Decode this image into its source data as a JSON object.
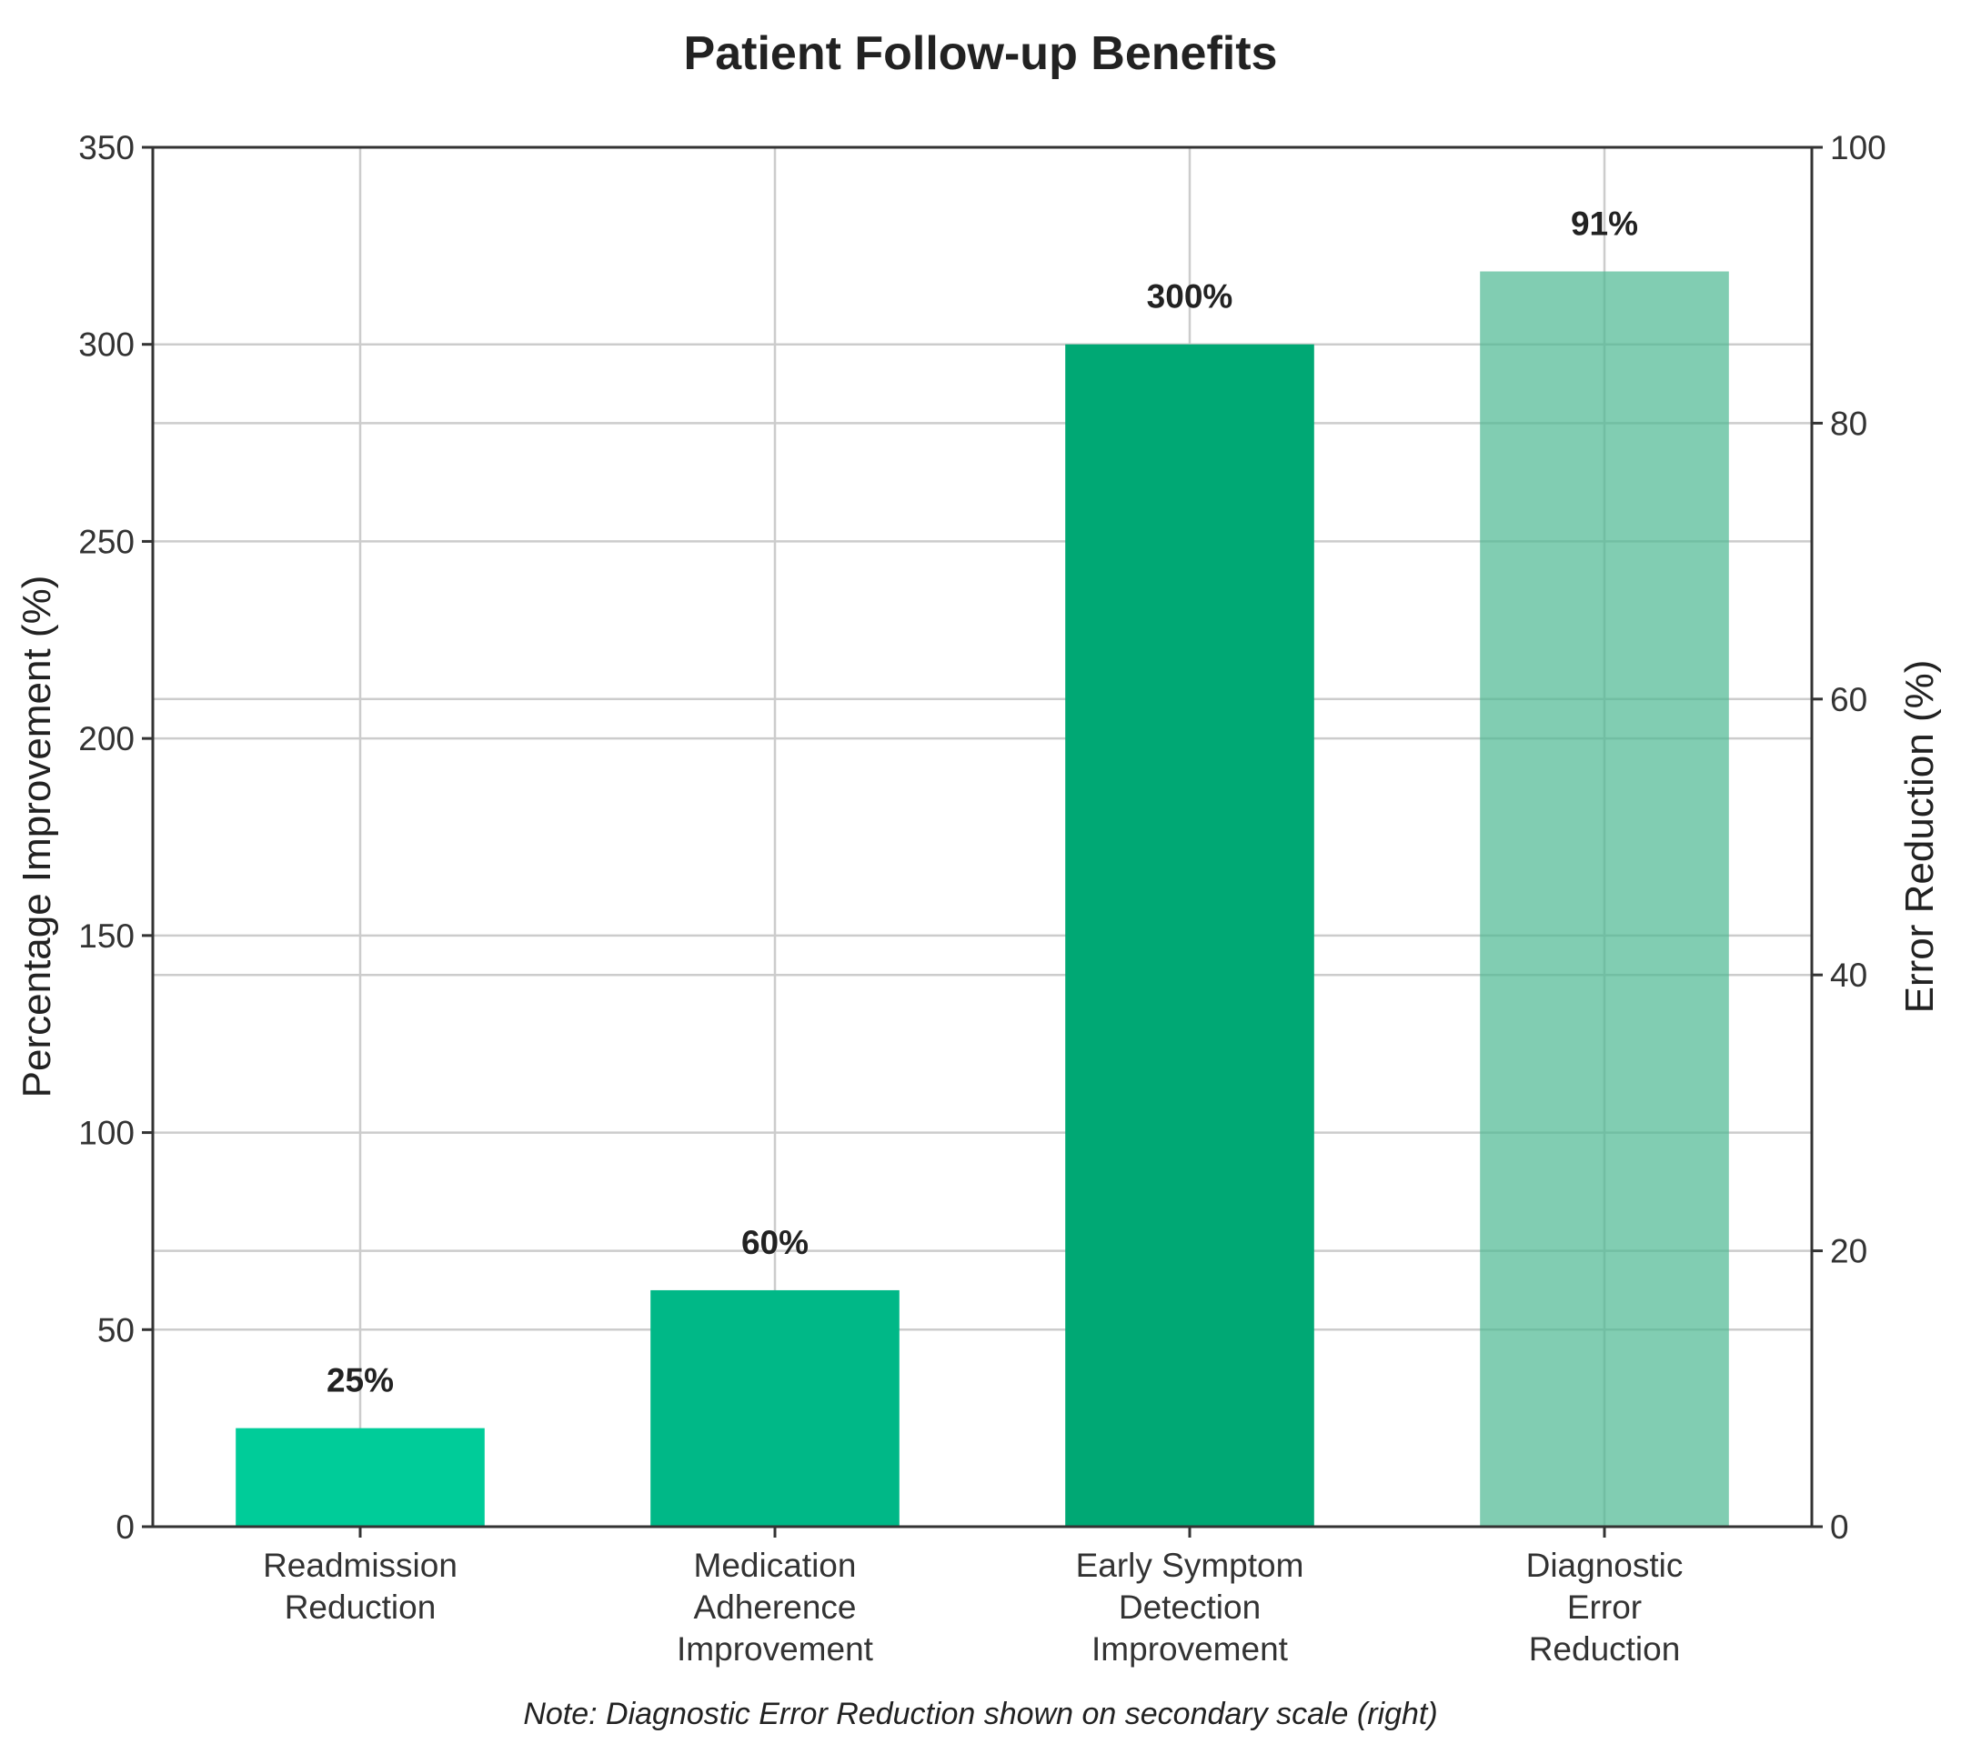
{
  "chart_data": {
    "type": "bar",
    "title": "Patient Follow-up Benefits",
    "ylabel": "Percentage Improvement (%)",
    "ylabel_right": "Error Reduction (%)",
    "xlabel": "",
    "ylim": [
      0,
      350
    ],
    "ylim_right": [
      0,
      100
    ],
    "yticks": [
      0,
      50,
      100,
      150,
      200,
      250,
      300,
      350
    ],
    "yticks_right": [
      0,
      20,
      40,
      60,
      80,
      100
    ],
    "grid": true,
    "categories": [
      "Readmission\nReduction",
      "Medication\nAdherence\nImprovement",
      "Early Symptom\nDetection\nImprovement",
      "Diagnostic\nError\nReduction"
    ],
    "values": [
      25,
      60,
      300,
      91
    ],
    "axis": [
      "left",
      "left",
      "left",
      "right"
    ],
    "value_labels": [
      "25%",
      "60%",
      "300%",
      "91%"
    ],
    "colors": [
      "#00cc99",
      "#00b887",
      "#00a874",
      "#4cb891"
    ],
    "note": "Note: Diagnostic Error Reduction shown on secondary scale (right)"
  }
}
